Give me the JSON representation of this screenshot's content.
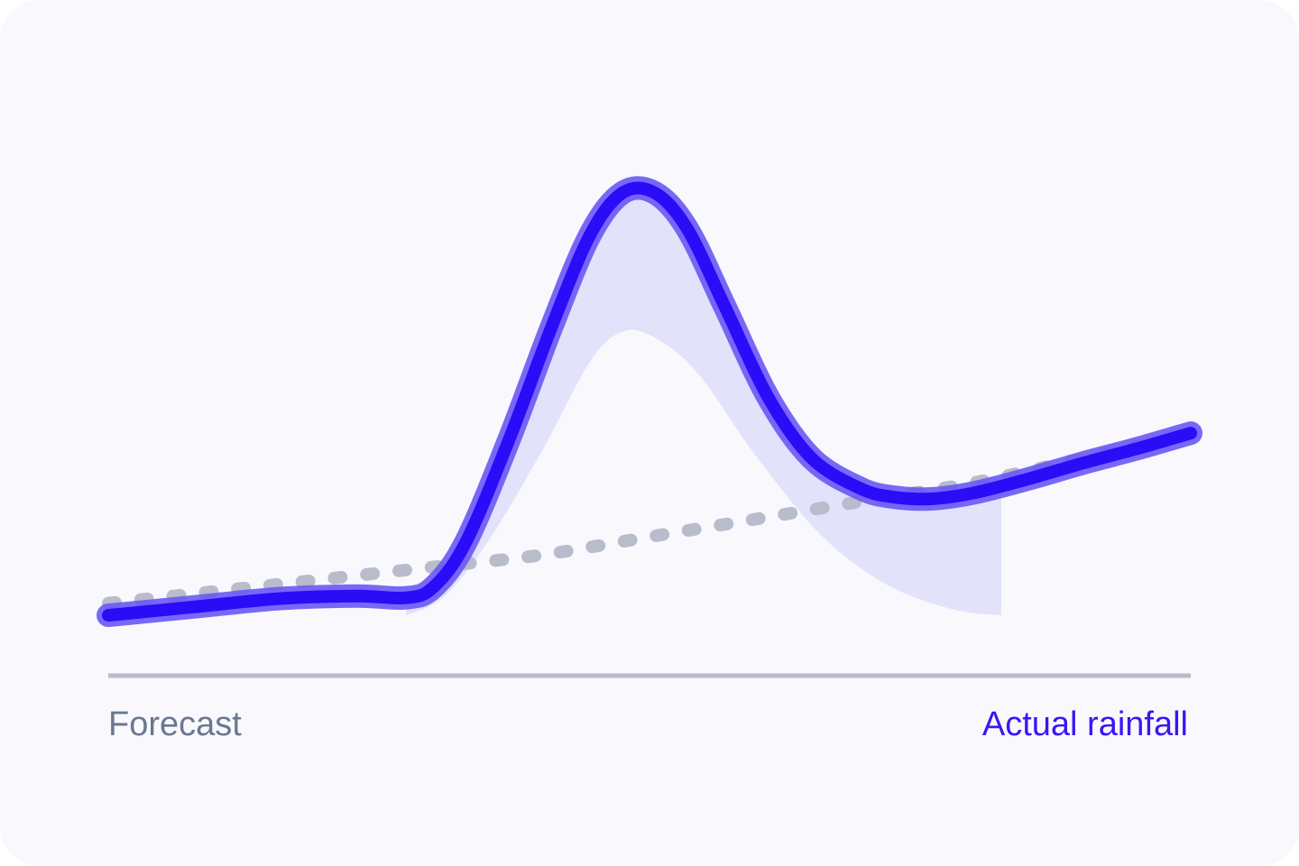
{
  "chart_data": {
    "type": "line",
    "title": "",
    "xlabel": "",
    "ylabel": "",
    "grid": false,
    "x_range": [
      0,
      1
    ],
    "y_range": [
      0,
      1
    ],
    "series": [
      {
        "name": "Forecast",
        "style": "dotted",
        "color": "#b8bccb",
        "points": [
          [
            0.0,
            0.12
          ],
          [
            0.1,
            0.14
          ],
          [
            0.2,
            0.16
          ],
          [
            0.3,
            0.18
          ],
          [
            0.4,
            0.2
          ],
          [
            0.5,
            0.23
          ],
          [
            0.6,
            0.26
          ],
          [
            0.7,
            0.29
          ],
          [
            0.8,
            0.32
          ],
          [
            0.9,
            0.36
          ],
          [
            1.0,
            0.4
          ]
        ]
      },
      {
        "name": "Actual rainfall",
        "style": "solid",
        "color": "#2a0cf7",
        "points": [
          [
            0.0,
            0.1
          ],
          [
            0.08,
            0.114
          ],
          [
            0.16,
            0.128
          ],
          [
            0.23,
            0.132
          ],
          [
            0.275,
            0.129
          ],
          [
            0.3,
            0.146
          ],
          [
            0.33,
            0.22
          ],
          [
            0.37,
            0.39
          ],
          [
            0.41,
            0.58
          ],
          [
            0.445,
            0.73
          ],
          [
            0.475,
            0.8
          ],
          [
            0.505,
            0.8
          ],
          [
            0.535,
            0.74
          ],
          [
            0.57,
            0.61
          ],
          [
            0.61,
            0.46
          ],
          [
            0.65,
            0.36
          ],
          [
            0.695,
            0.31
          ],
          [
            0.725,
            0.296
          ],
          [
            0.76,
            0.293
          ],
          [
            0.8,
            0.303
          ],
          [
            0.85,
            0.326
          ],
          [
            0.9,
            0.352
          ],
          [
            0.95,
            0.376
          ],
          [
            1.0,
            0.402
          ]
        ]
      }
    ],
    "band": {
      "color": "#e3e2fb",
      "x_start": 0.275,
      "x_end": 0.825,
      "upper": [
        [
          0.275,
          0.129
        ],
        [
          0.3,
          0.146
        ],
        [
          0.33,
          0.22
        ],
        [
          0.37,
          0.39
        ],
        [
          0.41,
          0.58
        ],
        [
          0.445,
          0.73
        ],
        [
          0.475,
          0.8
        ],
        [
          0.505,
          0.8
        ],
        [
          0.535,
          0.74
        ],
        [
          0.57,
          0.61
        ],
        [
          0.61,
          0.46
        ],
        [
          0.65,
          0.36
        ],
        [
          0.695,
          0.31
        ],
        [
          0.725,
          0.296
        ],
        [
          0.76,
          0.293
        ],
        [
          0.8,
          0.303
        ],
        [
          0.825,
          0.309
        ]
      ],
      "lower": [
        [
          0.275,
          0.1
        ],
        [
          0.31,
          0.13
        ],
        [
          0.35,
          0.22
        ],
        [
          0.4,
          0.37
        ],
        [
          0.445,
          0.52
        ],
        [
          0.475,
          0.57
        ],
        [
          0.505,
          0.56
        ],
        [
          0.545,
          0.5
        ],
        [
          0.6,
          0.36
        ],
        [
          0.66,
          0.23
        ],
        [
          0.72,
          0.15
        ],
        [
          0.78,
          0.11
        ],
        [
          0.825,
          0.1
        ]
      ]
    },
    "legend": {
      "placement": "bottom",
      "items": [
        {
          "label": "Forecast",
          "color": "#6b7891"
        },
        {
          "label": "Actual rainfall",
          "color": "#3b16f2"
        }
      ]
    },
    "axis": {
      "color": "#b8bccb"
    }
  }
}
